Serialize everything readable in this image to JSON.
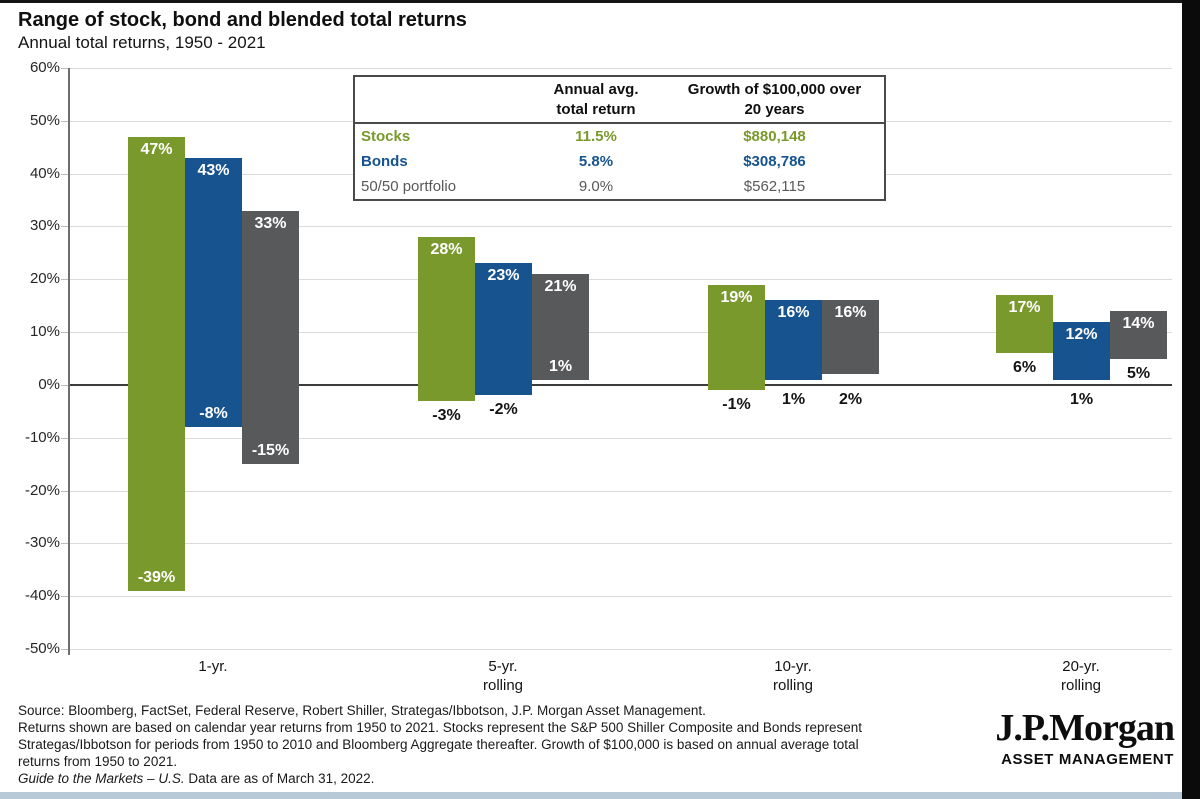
{
  "header": {
    "title": "Range of stock, bond and blended total returns",
    "subtitle": "Annual total returns, 1950 - 2021"
  },
  "summary_table": {
    "headers": [
      "Annual avg.\ntotal return",
      "Growth of $100,000 over\n20 years"
    ],
    "rows": [
      {
        "label": "Stocks",
        "annual_avg_total_return": "11.5%",
        "growth_of_100000_over_20_years": "$880,148",
        "series": "stocks"
      },
      {
        "label": "Bonds",
        "annual_avg_total_return": "5.8%",
        "growth_of_100000_over_20_years": "$308,786",
        "series": "bonds"
      },
      {
        "label": "50/50 portfolio",
        "annual_avg_total_return": "9.0%",
        "growth_of_100000_over_20_years": "$562,115",
        "series": "blend"
      }
    ]
  },
  "chart_data": {
    "type": "bar",
    "subtype": "floating_range_columns",
    "title": "Range of stock, bond and blended total returns",
    "subtitle": "Annual total returns, 1950 - 2021",
    "categories": [
      "1-yr.",
      "5-yr.\nrolling",
      "10-yr.\nrolling",
      "20-yr.\nrolling"
    ],
    "y_axis": {
      "unit": "%",
      "min": -50,
      "max": 60,
      "tick_step": 10,
      "tick_labels": [
        "60%",
        "50%",
        "40%",
        "30%",
        "20%",
        "10%",
        "0%",
        "-10%",
        "-20%",
        "-30%",
        "-40%",
        "-50%"
      ]
    },
    "series": [
      {
        "name": "Stocks",
        "series_key": "stocks",
        "color": "#7A992C",
        "max_values": [
          47,
          28,
          19,
          17
        ],
        "min_values": [
          -39,
          -3,
          -1,
          6
        ],
        "min_label_inside_bar": [
          true,
          false,
          false,
          false
        ]
      },
      {
        "name": "Bonds",
        "series_key": "bonds",
        "color": "#16538F",
        "max_values": [
          43,
          23,
          16,
          12
        ],
        "min_values": [
          -8,
          -2,
          1,
          1
        ],
        "min_label_inside_bar": [
          true,
          false,
          false,
          false
        ]
      },
      {
        "name": "50/50 portfolio",
        "series_key": "blend",
        "color": "#58595B",
        "max_values": [
          33,
          21,
          16,
          14
        ],
        "min_values": [
          -15,
          1,
          2,
          5
        ],
        "min_label_inside_bar": [
          true,
          true,
          false,
          false
        ]
      }
    ],
    "grid": true,
    "value_label_format": "{value}%",
    "legend_position": "none"
  },
  "footnotes": {
    "lines": [
      "Source: Bloomberg, FactSet, Federal Reserve, Robert Shiller, Strategas/Ibbotson, J.P. Morgan Asset Management.",
      "Returns shown are based on calendar year returns from 1950 to 2021. Stocks represent the S&P 500 Shiller Composite and Bonds represent",
      "Strategas/Ibbotson for periods from 1950 to 2010 and Bloomberg Aggregate thereafter. Growth of $100,000 is based on annual average total",
      "returns from 1950 to 2021."
    ],
    "guide_italic": "Guide to the Markets – U.S.",
    "guide_rest": " Data are as of March 31, 2022."
  },
  "logo": {
    "brand": "J.P.Morgan",
    "division": "ASSET MANAGEMENT"
  },
  "colors": {
    "stocks": "#7A992C",
    "bonds": "#16538F",
    "blend": "#58595B",
    "gridline": "#DBDBDB",
    "zero_line": "#3C3C3C",
    "axis_line": "#6E6E6E",
    "bottom_strip": "#B7C9D7",
    "edge_strip": "#0B0B0B"
  }
}
